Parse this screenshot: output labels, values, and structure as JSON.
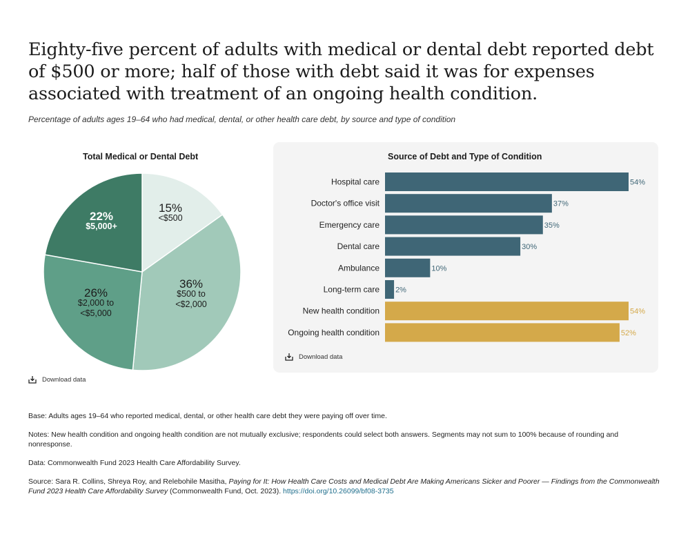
{
  "title": "Eighty-five percent of adults with medical or dental debt reported debt of $500 or more; half of those with debt said it was for expenses associated with treatment of an ongoing health condition.",
  "subtitle": "Percentage of adults ages 19–64 who had medical, dental, or other health care debt, by source and type of condition",
  "chart_data": [
    {
      "type": "pie",
      "title": "Total Medical or Dental Debt",
      "slices": [
        {
          "label": "<$500",
          "value": 15,
          "display": "15%",
          "color": "#e2eeea"
        },
        {
          "label": "$500 to <$2,000",
          "value": 36,
          "display": "36%",
          "color": "#a1c9b9"
        },
        {
          "label": "$2,000 to <$5,000",
          "value": 26,
          "display": "26%",
          "color": "#5f9f88"
        },
        {
          "label": "$5,000+",
          "value": 22,
          "display": "22%",
          "color": "#3e7b65"
        }
      ]
    },
    {
      "type": "bar",
      "orientation": "horizontal",
      "title": "Source of Debt and Type of Condition",
      "xlim": [
        0,
        54
      ],
      "categories": [
        "Hospital care",
        "Doctor's office visit",
        "Emergency care",
        "Dental care",
        "Ambulance",
        "Long-term care",
        "New health condition",
        "Ongoing health condition"
      ],
      "values": [
        54,
        37,
        35,
        30,
        10,
        2,
        54,
        52
      ],
      "labels": [
        "54%",
        "37%",
        "35%",
        "30%",
        "10%",
        "2%",
        "54%",
        "52%"
      ],
      "groups": [
        "source",
        "source",
        "source",
        "source",
        "source",
        "source",
        "condition",
        "condition"
      ],
      "colors": {
        "source": "#3f6676",
        "condition": "#d4a94a"
      },
      "grid": false
    }
  ],
  "pie_labels": {
    "s15_pct": "15%",
    "s15_cat": "<$500",
    "s36_pct": "36%",
    "s36_cat1": "$500 to",
    "s36_cat2": "<$2,000",
    "s26_pct": "26%",
    "s26_cat1": "$2,000 to",
    "s26_cat2": "<$5,000",
    "s22_pct": "22%",
    "s22_cat": "$5,000+"
  },
  "download_label": "Download data",
  "notes": {
    "base": "Base: Adults ages 19–64 who reported medical, dental, or other health care debt they were paying off over time.",
    "notes": "Notes: New health condition and ongoing health condition are not mutually exclusive; respondents could select both answers. Segments may not sum to 100% because of rounding and nonresponse.",
    "data": "Data: Commonwealth Fund 2023 Health Care Affordability Survey.",
    "source_prefix": "Source: Sara R. Collins, Shreya Roy, and Relebohile Masitha, ",
    "source_title": "Paying for It: How Health Care Costs and Medical Debt Are Making Americans Sicker and Poorer — Findings from the Commonwealth Fund 2023 Health Care Affordability Survey",
    "source_suffix": " (Commonwealth Fund, Oct. 2023). ",
    "source_link": "https://doi.org/10.26099/bf08-3735"
  }
}
